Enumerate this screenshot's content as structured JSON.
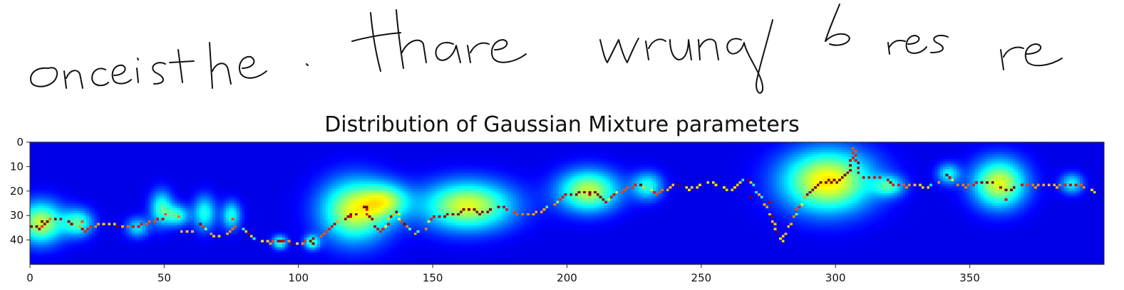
{
  "chart_data": {
    "type": "heatmap",
    "title": "Distribution of Gaussian Mixture parameters",
    "xlabel": "",
    "ylabel": "",
    "xlim": [
      0,
      400
    ],
    "ylim": [
      50,
      0
    ],
    "x_ticks": [
      0,
      50,
      100,
      150,
      200,
      250,
      300,
      350
    ],
    "y_ticks": [
      0,
      10,
      20,
      30,
      40
    ],
    "colormap": "jet",
    "background_color": "#00008b",
    "grid": false,
    "legend": "none",
    "blobs": [
      {
        "x": 4,
        "y": 33,
        "sx": 6,
        "sy": 6,
        "w": 0.85
      },
      {
        "x": 18,
        "y": 33,
        "sx": 4,
        "sy": 4,
        "w": 0.6
      },
      {
        "x": 40,
        "y": 35,
        "sx": 3,
        "sy": 3,
        "w": 0.45
      },
      {
        "x": 49,
        "y": 27,
        "sx": 3,
        "sy": 5,
        "w": 0.6
      },
      {
        "x": 55,
        "y": 30,
        "sx": 3,
        "sy": 3,
        "w": 0.55
      },
      {
        "x": 65,
        "y": 29,
        "sx": 3,
        "sy": 5,
        "w": 0.55
      },
      {
        "x": 75,
        "y": 30,
        "sx": 2.5,
        "sy": 4,
        "w": 0.55
      },
      {
        "x": 93,
        "y": 41,
        "sx": 2,
        "sy": 2,
        "w": 0.6
      },
      {
        "x": 105,
        "y": 41,
        "sx": 2,
        "sy": 2,
        "w": 0.6
      },
      {
        "x": 121,
        "y": 28,
        "sx": 9,
        "sy": 9,
        "w": 0.9
      },
      {
        "x": 133,
        "y": 24,
        "sx": 6,
        "sy": 5,
        "w": 0.55
      },
      {
        "x": 163,
        "y": 26,
        "sx": 12,
        "sy": 7,
        "w": 0.9
      },
      {
        "x": 208,
        "y": 20,
        "sx": 8,
        "sy": 6,
        "w": 0.85
      },
      {
        "x": 230,
        "y": 18,
        "sx": 4,
        "sy": 4,
        "w": 0.55
      },
      {
        "x": 297,
        "y": 16,
        "sx": 12,
        "sy": 9,
        "w": 1.0
      },
      {
        "x": 320,
        "y": 18,
        "sx": 4,
        "sy": 3,
        "w": 0.5
      },
      {
        "x": 342,
        "y": 13,
        "sx": 3,
        "sy": 3,
        "w": 0.5
      },
      {
        "x": 361,
        "y": 17,
        "sx": 7,
        "sy": 7,
        "w": 0.9
      },
      {
        "x": 388,
        "y": 17,
        "sx": 3,
        "sy": 3,
        "w": 0.5
      }
    ],
    "trace": [
      [
        0,
        34
      ],
      [
        3,
        35
      ],
      [
        6,
        33
      ],
      [
        9,
        31
      ],
      [
        13,
        32
      ],
      [
        17,
        34
      ],
      [
        20,
        36
      ],
      [
        24,
        34
      ],
      [
        28,
        33
      ],
      [
        32,
        34
      ],
      [
        36,
        35
      ],
      [
        40,
        34
      ],
      [
        44,
        33
      ],
      [
        47,
        32
      ],
      [
        50,
        31
      ],
      [
        53,
        34
      ],
      [
        56,
        37
      ],
      [
        60,
        36
      ],
      [
        63,
        33
      ],
      [
        66,
        37
      ],
      [
        70,
        39
      ],
      [
        74,
        37
      ],
      [
        77,
        34
      ],
      [
        81,
        37
      ],
      [
        85,
        40
      ],
      [
        89,
        41
      ],
      [
        93,
        40
      ],
      [
        97,
        41
      ],
      [
        101,
        41
      ],
      [
        105,
        40
      ],
      [
        109,
        38
      ],
      [
        113,
        34
      ],
      [
        117,
        31
      ],
      [
        121,
        29
      ],
      [
        124,
        26
      ],
      [
        127,
        31
      ],
      [
        130,
        37
      ],
      [
        133,
        33
      ],
      [
        136,
        28
      ],
      [
        139,
        33
      ],
      [
        143,
        38
      ],
      [
        147,
        35
      ],
      [
        151,
        30
      ],
      [
        155,
        30
      ],
      [
        159,
        29
      ],
      [
        163,
        27
      ],
      [
        167,
        29
      ],
      [
        171,
        28
      ],
      [
        175,
        26
      ],
      [
        179,
        28
      ],
      [
        183,
        30
      ],
      [
        187,
        29
      ],
      [
        191,
        28
      ],
      [
        195,
        25
      ],
      [
        199,
        22
      ],
      [
        203,
        21
      ],
      [
        207,
        20
      ],
      [
        211,
        21
      ],
      [
        214,
        24
      ],
      [
        217,
        22
      ],
      [
        220,
        20
      ],
      [
        224,
        18
      ],
      [
        227,
        17
      ],
      [
        230,
        19
      ],
      [
        233,
        21
      ],
      [
        237,
        19
      ],
      [
        241,
        17
      ],
      [
        245,
        19
      ],
      [
        249,
        18
      ],
      [
        253,
        16
      ],
      [
        257,
        18
      ],
      [
        261,
        20
      ],
      [
        264,
        17
      ],
      [
        267,
        15
      ],
      [
        270,
        19
      ],
      [
        273,
        24
      ],
      [
        276,
        30
      ],
      [
        278,
        36
      ],
      [
        280,
        40
      ],
      [
        283,
        34
      ],
      [
        286,
        27
      ],
      [
        290,
        21
      ],
      [
        294,
        17
      ],
      [
        298,
        16
      ],
      [
        302,
        15
      ],
      [
        305,
        12
      ],
      [
        306,
        6
      ],
      [
        307,
        2
      ],
      [
        308,
        8
      ],
      [
        309,
        14
      ],
      [
        313,
        14
      ],
      [
        318,
        15
      ],
      [
        322,
        17
      ],
      [
        326,
        18
      ],
      [
        330,
        17
      ],
      [
        334,
        19
      ],
      [
        338,
        16
      ],
      [
        341,
        13
      ],
      [
        344,
        17
      ],
      [
        348,
        18
      ],
      [
        352,
        17
      ],
      [
        356,
        16
      ],
      [
        360,
        17
      ],
      [
        363,
        20
      ],
      [
        366,
        19
      ],
      [
        370,
        17
      ],
      [
        374,
        18
      ],
      [
        378,
        17
      ],
      [
        382,
        18
      ],
      [
        386,
        17
      ],
      [
        390,
        17
      ],
      [
        394,
        19
      ],
      [
        398,
        21
      ]
    ],
    "hotspots": [
      {
        "x": 4,
        "y": 32,
        "v": 0.9
      },
      {
        "x": 19,
        "y": 32,
        "v": 0.7
      },
      {
        "x": 50,
        "y": 29,
        "v": 0.7
      },
      {
        "x": 55,
        "y": 30,
        "v": 0.65
      },
      {
        "x": 75,
        "y": 31,
        "v": 0.7
      },
      {
        "x": 93,
        "y": 40,
        "v": 0.85
      },
      {
        "x": 105,
        "y": 41,
        "v": 0.95
      },
      {
        "x": 119,
        "y": 30,
        "v": 0.8
      },
      {
        "x": 125,
        "y": 26,
        "v": 1.0
      },
      {
        "x": 165,
        "y": 27,
        "v": 1.0
      },
      {
        "x": 208,
        "y": 21,
        "v": 0.85
      },
      {
        "x": 268,
        "y": 22,
        "v": 0.9
      },
      {
        "x": 275,
        "y": 24,
        "v": 0.85
      },
      {
        "x": 297,
        "y": 15,
        "v": 1.0
      },
      {
        "x": 300,
        "y": 16,
        "v": 0.9
      },
      {
        "x": 321,
        "y": 17,
        "v": 0.8
      },
      {
        "x": 361,
        "y": 18,
        "v": 0.85
      },
      {
        "x": 363,
        "y": 23,
        "v": 0.8
      }
    ]
  }
}
